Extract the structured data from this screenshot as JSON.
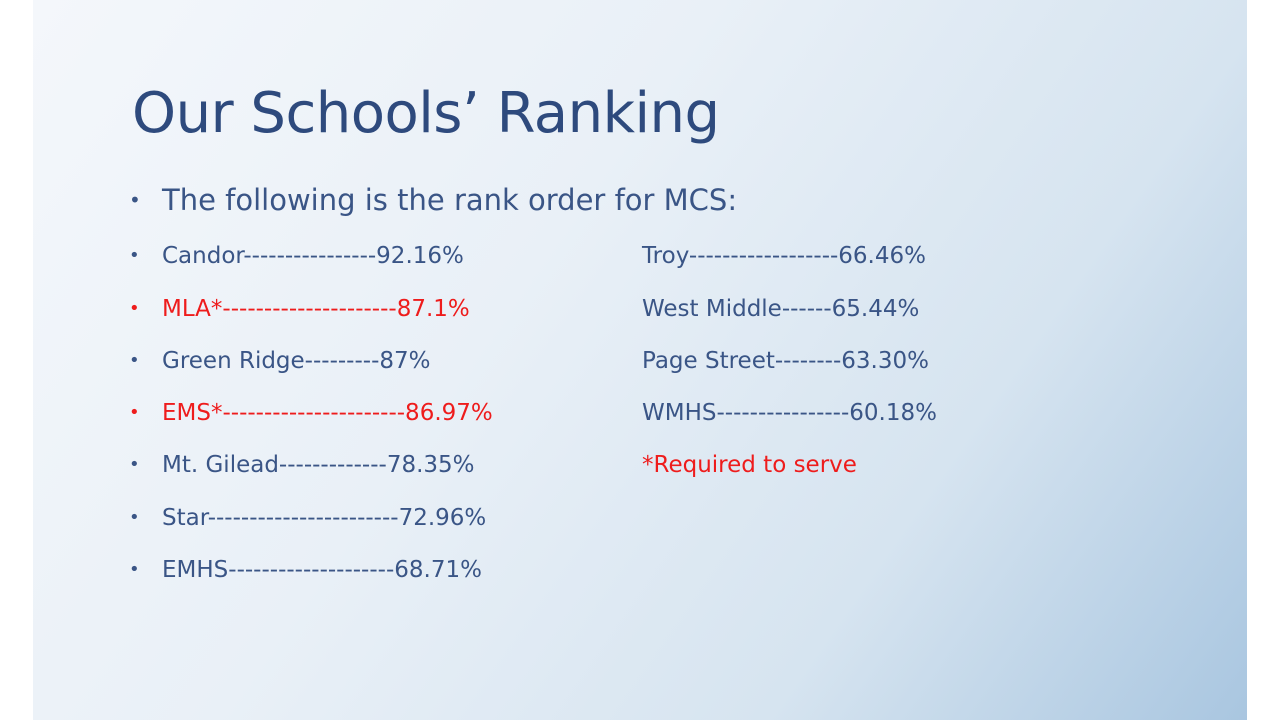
{
  "slide": {
    "title": "Our Schools’ Ranking",
    "intro": "The following is the rank order for MCS:",
    "bullet_char": "•",
    "left_column": [
      {
        "text": "Candor----------------92.16%",
        "highlight": false
      },
      {
        "text": "MLA*---------------------87.1%",
        "highlight": true
      },
      {
        "text": "Green Ridge---------87%",
        "highlight": false
      },
      {
        "text": "EMS*----------------------86.97%",
        "highlight": true
      },
      {
        "text": "Mt. Gilead-------------78.35%",
        "highlight": false
      },
      {
        "text": "Star-----------------------72.96%",
        "highlight": false
      },
      {
        "text": "EMHS--------------------68.71%",
        "highlight": false
      }
    ],
    "right_column": [
      {
        "text": "Troy------------------66.46%",
        "highlight": false
      },
      {
        "text": "West Middle------65.44%",
        "highlight": false
      },
      {
        "text": "Page Street--------63.30%",
        "highlight": false
      },
      {
        "text": "WMHS----------------60.18%",
        "highlight": false
      },
      {
        "text": "*Required to serve",
        "highlight": true
      }
    ],
    "colors": {
      "title": "#2e4a7d",
      "body": "#3a5586",
      "highlight": "#ee1c1c"
    }
  }
}
